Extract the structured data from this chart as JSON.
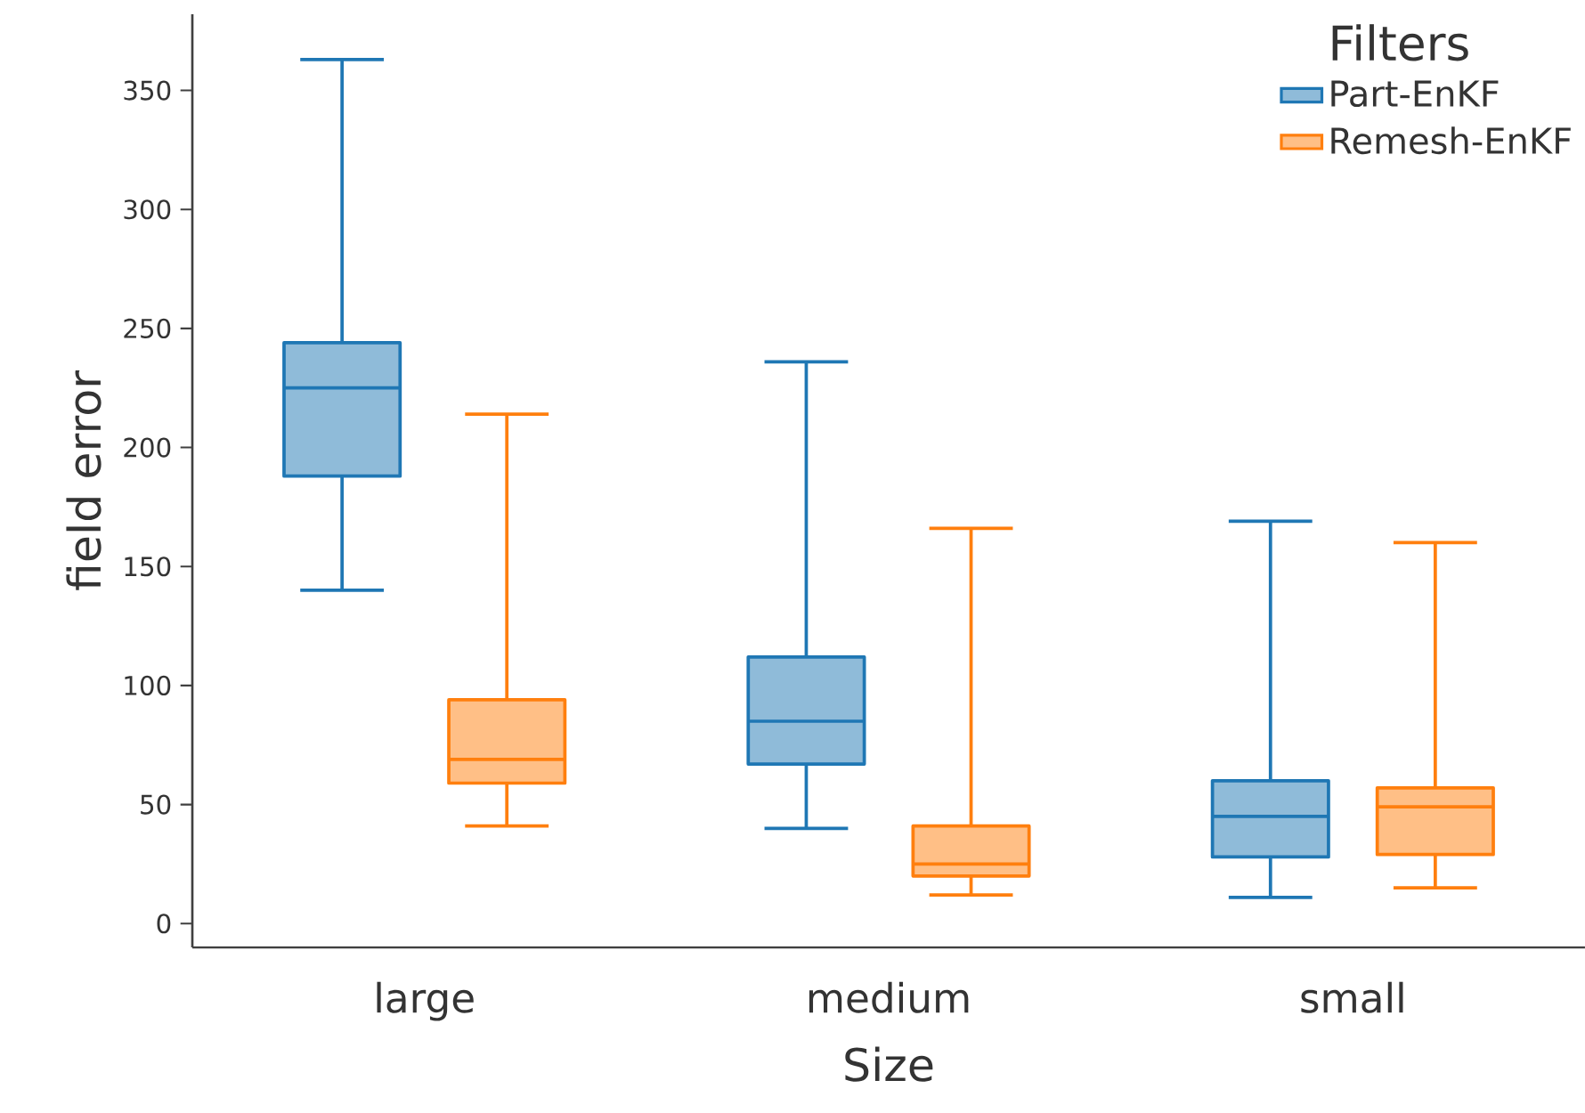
{
  "chart_data": {
    "type": "box",
    "xlabel": "Size",
    "ylabel": "field error",
    "legend_title": "Filters",
    "legend": "top right",
    "categories": [
      "large",
      "medium",
      "small"
    ],
    "ylim": [
      -10,
      382
    ],
    "yticks": [
      0,
      50,
      100,
      150,
      200,
      250,
      300,
      350
    ],
    "series": [
      {
        "name": "Part-EnKF",
        "color": "#1f77b4",
        "boxes": [
          {
            "low": 140,
            "q1": 188,
            "median": 225,
            "q3": 244,
            "high": 363
          },
          {
            "low": 40,
            "q1": 67,
            "median": 85,
            "q3": 112,
            "high": 236
          },
          {
            "low": 11,
            "q1": 28,
            "median": 45,
            "q3": 60,
            "high": 169
          }
        ]
      },
      {
        "name": "Remesh-EnKF",
        "color": "#ff7f0e",
        "boxes": [
          {
            "low": 41,
            "q1": 59,
            "median": 69,
            "q3": 94,
            "high": 214
          },
          {
            "low": 12,
            "q1": 20,
            "median": 25,
            "q3": 41,
            "high": 166
          },
          {
            "low": 15,
            "q1": 29,
            "median": 49,
            "q3": 57,
            "high": 160
          }
        ]
      }
    ]
  }
}
